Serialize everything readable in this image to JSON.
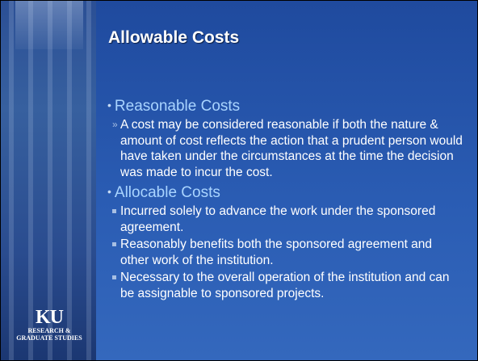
{
  "title": "Allowable Costs",
  "sections": [
    {
      "heading": "Reasonable Costs",
      "items": [
        "A cost may be considered reasonable if both the nature & amount of cost reflects the action that a prudent person would have taken under the circumstances at the time the decision was made to incur the cost."
      ]
    },
    {
      "heading": "Allocable Costs",
      "items": [
        "Incurred solely to advance the work under the sponsored agreement.",
        "Reasonably benefits both the sponsored agreement and other work of the institution.",
        "Necessary to the overall operation of the institution and can be assignable to sponsored projects."
      ]
    }
  ],
  "logo": {
    "mark": "KU",
    "name": "RESEARCH & GRADUATE STUDIES"
  }
}
